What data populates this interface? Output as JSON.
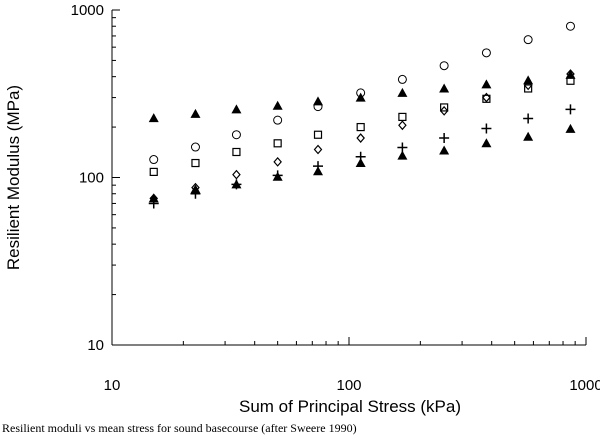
{
  "caption": "Resilient moduli vs mean stress for sound basecourse (after Sweere 1990)",
  "chart_data": {
    "type": "scatter",
    "xlabel": "Sum of Principal Stress (kPa)",
    "ylabel": "Resilient Modulus  (MPa)",
    "xscale": "log",
    "yscale": "log",
    "xlim": [
      10,
      1000
    ],
    "ylim": [
      10,
      1000
    ],
    "x_ticks": [
      "10",
      "100",
      "1000"
    ],
    "y_ticks": [
      "10",
      "100",
      "1000"
    ],
    "grid": false,
    "legend": "none",
    "x": [
      15,
      22.5,
      33.5,
      50,
      74,
      112,
      168,
      252,
      380,
      570,
      860
    ],
    "series": [
      {
        "marker": "circle",
        "values": [
          128,
          152,
          180,
          220,
          265,
          320,
          385,
          465,
          555,
          665,
          800
        ]
      },
      {
        "marker": "triangle",
        "values": [
          226,
          240,
          255,
          268,
          285,
          300,
          320,
          340,
          360,
          380,
          410
        ]
      },
      {
        "marker": "square",
        "values": [
          108,
          122,
          142,
          160,
          180,
          200,
          230,
          262,
          295,
          340,
          378
        ]
      },
      {
        "marker": "diamond",
        "values": [
          75,
          87,
          104,
          124,
          147,
          172,
          205,
          250,
          300,
          355,
          415
        ]
      },
      {
        "marker": "plus",
        "values": [
          70,
          80,
          91,
          103,
          117,
          133,
          151,
          172,
          196,
          225,
          255
        ]
      },
      {
        "marker": "triangle",
        "values": [
          75,
          85,
          91,
          101,
          109,
          122,
          135,
          145,
          160,
          175,
          195
        ]
      }
    ],
    "marker_color": "#000000"
  }
}
